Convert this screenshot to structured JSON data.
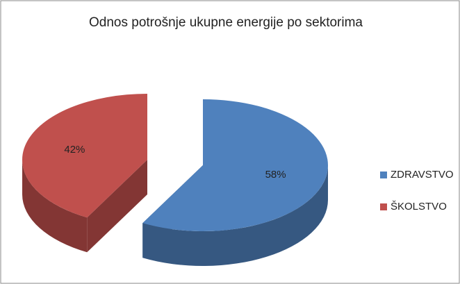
{
  "chart_data": {
    "type": "pie",
    "title": "Odnos potrošnje ukupne energije po sektorima",
    "categories": [
      "ZDRAVSTVO",
      "ŠKOLSTVO"
    ],
    "values": [
      58,
      42
    ],
    "value_labels": [
      "58%",
      "42%"
    ],
    "colors": [
      "#4f81bd",
      "#c0504d"
    ],
    "legend": "right"
  }
}
